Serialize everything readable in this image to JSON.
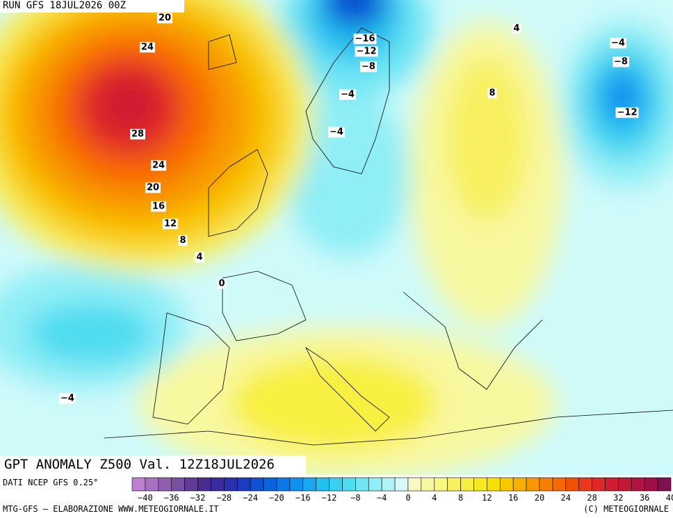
{
  "header": {
    "run": "RUN GFS 18JUL2026 00Z"
  },
  "title": "GPT ANOMALY Z500 Val. 12Z18JUL2026",
  "footer": {
    "source": "DATI NCEP GFS 0.25°",
    "left": "MTG-GFS — ELABORAZIONE WWW.METEOGIORNALE.IT",
    "right": "(C) METEOGIORNALE"
  },
  "map": {
    "contour_labels": [
      "20",
      "24",
      "28",
      "24",
      "20",
      "16",
      "12",
      "8",
      "4",
      "0",
      "−4",
      "−16",
      "−12",
      "−8",
      "−4",
      "−4",
      "4",
      "8",
      "−4",
      "−8",
      "−12"
    ]
  },
  "colorbar": {
    "colors": [
      "#c080d0",
      "#a870c0",
      "#9060b0",
      "#7850a0",
      "#603c98",
      "#4a2c90",
      "#3a2ca0",
      "#2a30b0",
      "#1c3cc0",
      "#1050d0",
      "#0a64e0",
      "#0a78e8",
      "#1090f0",
      "#18a8f0",
      "#20c0f0",
      "#38d0f0",
      "#50dcf0",
      "#70e6f4",
      "#90eef6",
      "#b0f4f8",
      "#d4fafa",
      "#f8f8c0",
      "#f8f8a0",
      "#f8f880",
      "#f8f060",
      "#f8f040",
      "#f8e820",
      "#f8e000",
      "#f8c800",
      "#f8b000",
      "#f89800",
      "#f88000",
      "#f86800",
      "#f05000",
      "#e83820",
      "#e02828",
      "#d01c30",
      "#c01838",
      "#b01440",
      "#a01048",
      "#801050"
    ],
    "labels": [
      "−40",
      "−36",
      "−32",
      "−28",
      "−24",
      "−20",
      "−16",
      "−12",
      "−8",
      "−4",
      "0",
      "4",
      "8",
      "12",
      "16",
      "20",
      "24",
      "28",
      "32",
      "36",
      "40"
    ]
  }
}
